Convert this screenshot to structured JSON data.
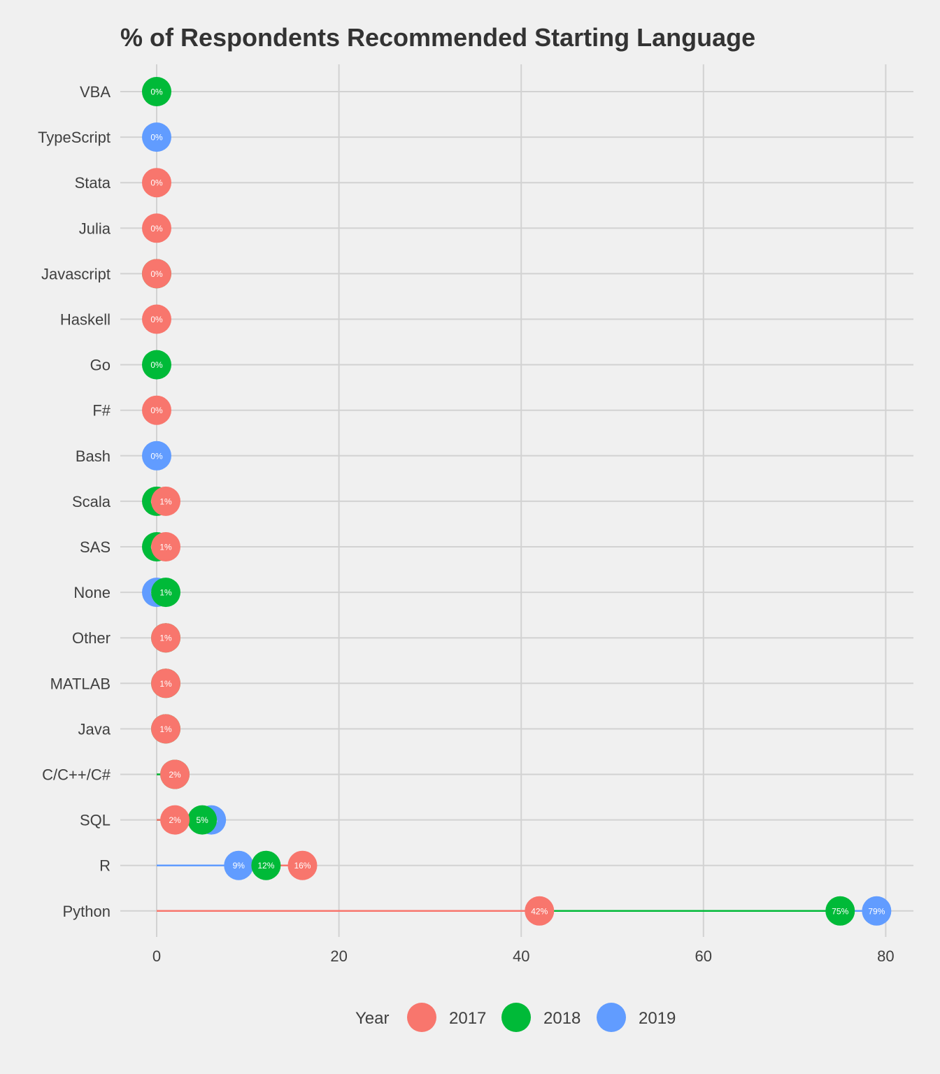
{
  "chart_data": {
    "type": "scatter",
    "title": "% of Respondents Recommended Starting Language",
    "xlabel": "",
    "ylabel": "",
    "xlim": [
      -4,
      83
    ],
    "x_ticks": [
      0,
      20,
      40,
      60,
      80
    ],
    "grid": true,
    "legend_position": "bottom",
    "legend_title": "Year",
    "categories": [
      "VBA",
      "TypeScript",
      "Stata",
      "Julia",
      "Javascript",
      "Haskell",
      "Go",
      "F#",
      "Bash",
      "Scala",
      "SAS",
      "None",
      "Other",
      "MATLAB",
      "Java",
      "C/C++/C#",
      "SQL",
      "R",
      "Python"
    ],
    "series": [
      {
        "name": "2017",
        "color": "#F8766D",
        "values": [
          null,
          null,
          0,
          0,
          0,
          0,
          null,
          0,
          null,
          1,
          1,
          null,
          1,
          1,
          1,
          2,
          2,
          16,
          42
        ],
        "labels": [
          "",
          "",
          "0%",
          "0%",
          "0%",
          "0%",
          "",
          "0%",
          "",
          "1%",
          "1%",
          "",
          "1%",
          "1%",
          "1%",
          "2%",
          "2%",
          "16%",
          "42%"
        ]
      },
      {
        "name": "2018",
        "color": "#00BA38",
        "values": [
          0,
          null,
          null,
          null,
          0,
          null,
          0,
          null,
          null,
          0,
          0,
          1,
          1,
          1,
          1,
          2,
          5,
          12,
          75
        ],
        "labels": [
          "0%",
          "",
          "",
          "",
          "0%",
          "",
          "0%",
          "",
          "",
          "0%",
          "0%",
          "1%",
          "1%",
          "1%",
          "1%",
          "2%",
          "5%",
          "12%",
          "75%"
        ]
      },
      {
        "name": "2019",
        "color": "#619CFF",
        "values": [
          null,
          0,
          null,
          null,
          null,
          null,
          null,
          null,
          0,
          null,
          null,
          0,
          null,
          null,
          null,
          null,
          6,
          9,
          79
        ],
        "labels": [
          "",
          "0%",
          "",
          "",
          "",
          "",
          "",
          "",
          "0%",
          "",
          "",
          "0%",
          "",
          "",
          "",
          "",
          "6%",
          "9%",
          "79%"
        ]
      }
    ]
  },
  "colors": {
    "background": "#f0f0f0",
    "grid": "#d2d2d2"
  }
}
